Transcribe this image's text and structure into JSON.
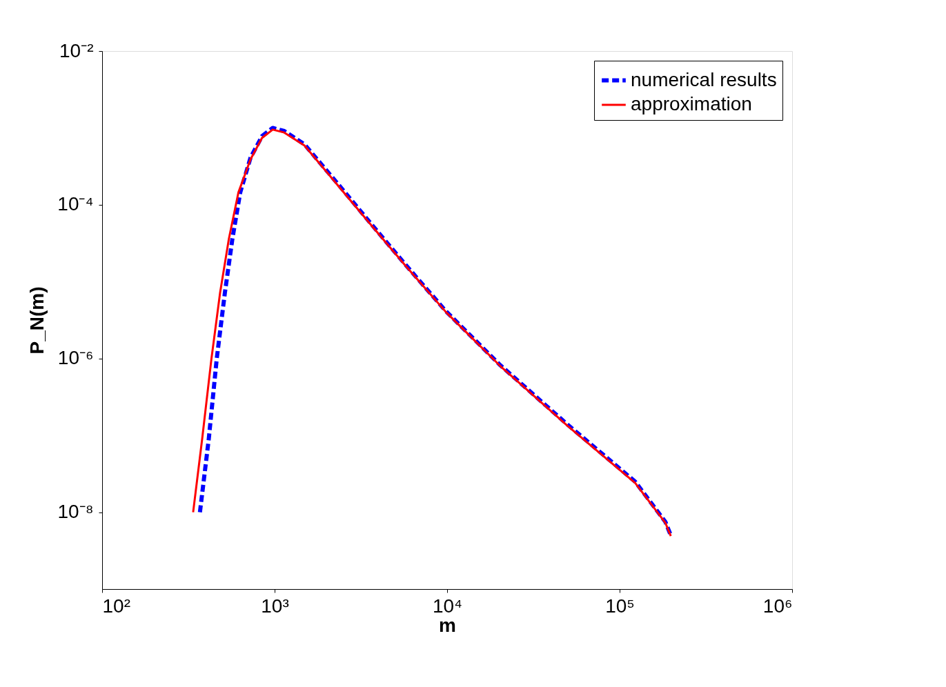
{
  "chart_data": {
    "type": "line",
    "xlabel": "m",
    "ylabel": "P_N(m)",
    "log": "xy",
    "legend": "top right",
    "grid": false,
    "xlim": [
      100,
      1000000
    ],
    "ylim": [
      1e-09,
      0.01
    ],
    "xticks": [
      {
        "value": 100,
        "label": "10²"
      },
      {
        "value": 1000,
        "label": "10³"
      },
      {
        "value": 10000,
        "label": "10⁴"
      },
      {
        "value": 100000,
        "label": "10⁵"
      },
      {
        "value": 1000000,
        "label": "10⁶"
      }
    ],
    "yticks": [
      {
        "value": 1e-08,
        "label": "10⁻⁸"
      },
      {
        "value": 1e-06,
        "label": "10⁻⁶"
      },
      {
        "value": 0.0001,
        "label": "10⁻⁴"
      },
      {
        "value": 0.01,
        "label": "10⁻²"
      }
    ],
    "series": [
      {
        "name": "numerical results",
        "color": "#0000ff",
        "line_style": "dashed",
        "x": [
          369,
          415,
          462,
          515,
          569,
          632,
          725,
          845,
          975,
          1137,
          1490,
          2335,
          3660,
          5750,
          9860,
          20300,
          49900,
          123000,
          184000,
          198000
        ],
        "values": [
          1e-08,
          8.9e-08,
          1e-06,
          7.2e-06,
          3.6e-05,
          0.000145,
          0.00041,
          0.00078,
          0.001,
          0.00091,
          0.00061,
          0.000185,
          5.5e-05,
          1.65e-05,
          4.1e-06,
          8.2e-07,
          1.38e-07,
          2.5e-08,
          7.5e-09,
          5e-09
        ]
      },
      {
        "name": "approximation",
        "color": "#ff0000",
        "line_style": "solid",
        "x": [
          337,
          380,
          430,
          483,
          543,
          617,
          725,
          845,
          975,
          1137,
          1490,
          2335,
          3660,
          5750,
          9860,
          20300,
          49900,
          123000,
          184000,
          198000
        ],
        "values": [
          1e-08,
          8.9e-08,
          9.8e-07,
          7.2e-06,
          3.6e-05,
          0.000145,
          0.00039,
          0.00074,
          0.00095,
          0.00087,
          0.00059,
          0.000177,
          5.3e-05,
          1.6e-05,
          4e-06,
          8e-07,
          1.33e-07,
          2.4e-08,
          7.3e-09,
          4.9e-09
        ]
      }
    ]
  }
}
